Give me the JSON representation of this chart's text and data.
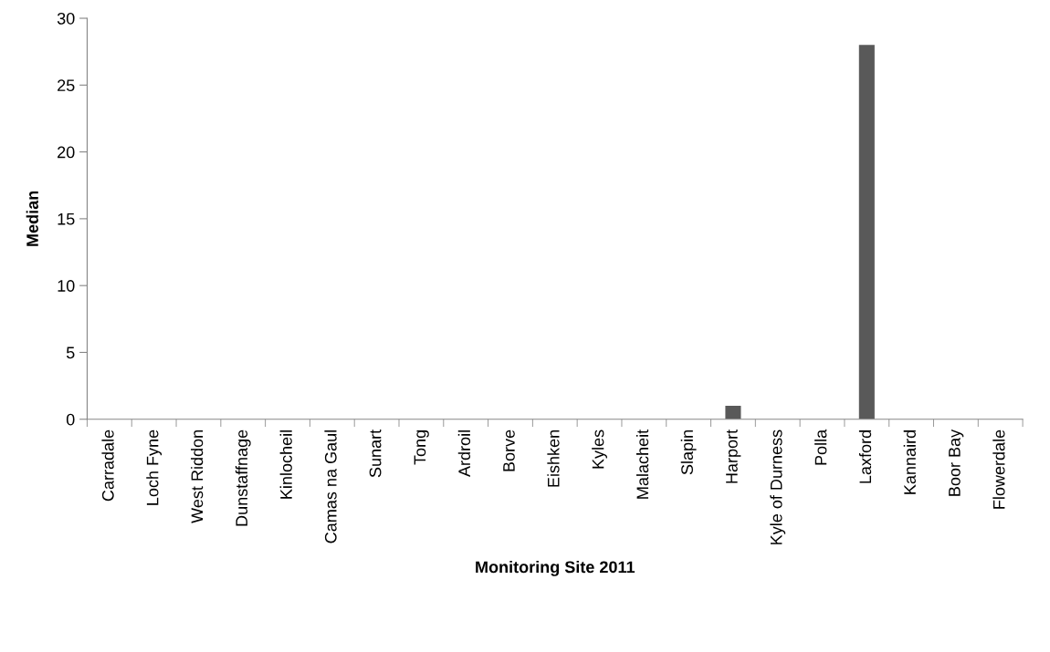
{
  "chart_data": {
    "type": "bar",
    "xlabel": "Monitoring Site 2011",
    "ylabel": "Median",
    "categories": [
      "Carradale",
      "Loch Fyne",
      "West Riddon",
      "Dunstaffnage",
      "Kinlocheil",
      "Camas na Gaul",
      "Sunart",
      "Tong",
      "Ardroil",
      "Borve",
      "Eishken",
      "Kyles",
      "Malacheit",
      "Slapin",
      "Harport",
      "Kyle of Durness",
      "Polla",
      "Laxford",
      "Kannaird",
      "Boor Bay",
      "Flowerdale"
    ],
    "values": [
      0,
      0,
      0,
      0,
      0,
      0,
      0,
      0,
      0,
      0,
      0,
      0,
      0,
      0,
      1,
      0,
      0,
      28,
      0,
      0,
      0
    ],
    "color": "#595959",
    "ylim": [
      0,
      30
    ],
    "yticks": [
      0,
      5,
      10,
      15,
      20,
      25,
      30
    ],
    "grid": false,
    "legend": false
  }
}
